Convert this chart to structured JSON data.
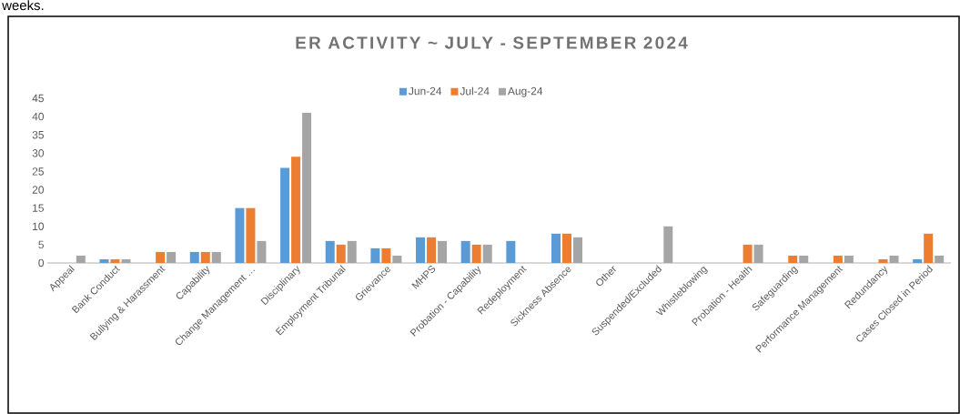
{
  "chart_data": {
    "type": "bar",
    "title": "ER ACTIVITY ~ JULY - SEPTEMBER 2024",
    "annotations": [
      "weeks."
    ],
    "categories": [
      "Appeal",
      "Bank Conduct",
      "Bullying & Harassment",
      "Capability",
      "Change Management …",
      "Disciplinary",
      "Employment Tribunal",
      "Grievance",
      "MHPS",
      "Probation - Capability",
      "Redeployment",
      "Sickness Absence",
      "Other",
      "Suspended/Excluded",
      "Whistleblowing",
      "Probation - Health",
      "Safeguarding",
      "Performance Management",
      "Redundancy",
      "Cases Closed in Period"
    ],
    "series": [
      {
        "name": "Jun-24",
        "color": "#5b9bd5",
        "values": [
          null,
          1,
          null,
          3,
          15,
          26,
          6,
          4,
          7,
          6,
          6,
          8,
          null,
          null,
          null,
          null,
          null,
          null,
          null,
          1
        ]
      },
      {
        "name": "Jul-24",
        "color": "#ed7d31",
        "values": [
          null,
          1,
          3,
          3,
          15,
          29,
          5,
          4,
          7,
          5,
          null,
          8,
          null,
          null,
          null,
          5,
          2,
          2,
          1,
          8
        ]
      },
      {
        "name": "Aug-24",
        "color": "#a5a5a5",
        "values": [
          2,
          1,
          3,
          3,
          6,
          41,
          6,
          2,
          6,
          5,
          null,
          7,
          null,
          10,
          null,
          5,
          2,
          2,
          2,
          2
        ]
      }
    ],
    "ylim": [
      0,
      45
    ],
    "yticks": [
      0,
      5,
      10,
      15,
      20,
      25,
      30,
      35,
      40,
      45
    ],
    "legend": "top",
    "grid": false
  }
}
